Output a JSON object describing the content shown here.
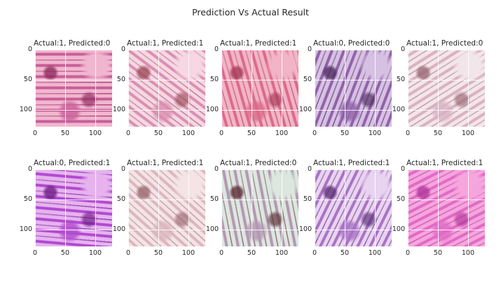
{
  "figure": {
    "title": "Prediction Vs Actual Result"
  },
  "axis_ticks": {
    "x": [
      "0",
      "50",
      "100"
    ],
    "y": [
      "0",
      "50",
      "100"
    ]
  },
  "panels": [
    {
      "title": "Actual:1, Predicted:0",
      "palette": [
        "#f1b6cf",
        "#c75f97",
        "#8e2a5e"
      ]
    },
    {
      "title": "Actual:1, Predicted:1",
      "palette": [
        "#f6d7e3",
        "#d98fb0",
        "#9c4c5a"
      ]
    },
    {
      "title": "Actual:1, Predicted:1",
      "palette": [
        "#f2b4c7",
        "#dc6a8a",
        "#a43a57"
      ]
    },
    {
      "title": "Actual:0, Predicted:0",
      "palette": [
        "#d7c1e3",
        "#8f62a8",
        "#4e2a5e"
      ]
    },
    {
      "title": "Actual:1, Predicted:0",
      "palette": [
        "#f3e6ea",
        "#d9b1c1",
        "#9a6775"
      ]
    },
    {
      "title": "Actual:0, Predicted:1",
      "palette": [
        "#e6b3ee",
        "#b14ad0",
        "#6c1a84"
      ]
    },
    {
      "title": "Actual:1, Predicted:1",
      "palette": [
        "#f4e4e6",
        "#dbb6be",
        "#9a6670"
      ]
    },
    {
      "title": "Actual:1, Predicted:0",
      "palette": [
        "#dce7df",
        "#b497b2",
        "#5b2c34"
      ]
    },
    {
      "title": "Actual:1, Predicted:1",
      "palette": [
        "#e9d4f0",
        "#a872c4",
        "#5c2f76"
      ]
    },
    {
      "title": "Actual:1, Predicted:1",
      "palette": [
        "#f6a5dd",
        "#e06ac6",
        "#b1349b"
      ]
    }
  ]
}
